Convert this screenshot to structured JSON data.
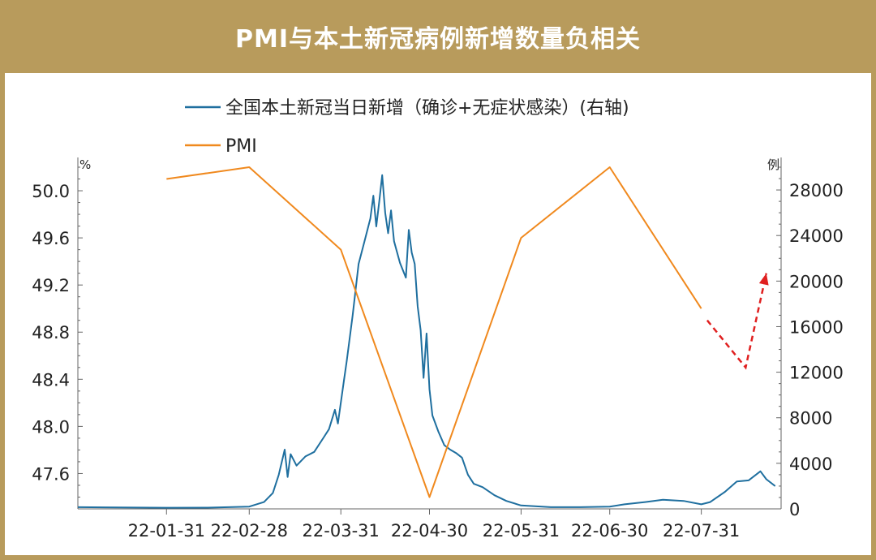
{
  "header": {
    "title": "PMI与本土新冠病例新增数量负相关"
  },
  "colors": {
    "frame": "#b89b5c",
    "cases_line": "#1f6f9f",
    "pmi_line": "#f0891e",
    "forecast_arrow": "#e02020"
  },
  "chart_data": {
    "type": "line",
    "title": "PMI与本土新冠病例新增数量负相关",
    "legend_position": "top-center",
    "grid": false,
    "x_tick_labels": [
      "22-01-31",
      "22-02-28",
      "22-03-31",
      "22-04-30",
      "22-05-31",
      "22-06-30",
      "22-07-31"
    ],
    "left_axis": {
      "unit_label": "%",
      "range": [
        47.3,
        50.2
      ],
      "ticks": [
        "50.0",
        "49.6",
        "49.2",
        "48.8",
        "48.4",
        "48.0",
        "47.6"
      ]
    },
    "right_axis": {
      "unit_label": "例",
      "range": [
        0,
        30000
      ],
      "ticks": [
        "28000",
        "24000",
        "20000",
        "16000",
        "12000",
        "8000",
        "4000",
        "0"
      ]
    },
    "series": [
      {
        "name": "全国本土新冠当日新增（确诊+无症状感染）(右轴)",
        "axis": "right",
        "points": [
          [
            "2022-01-01",
            150
          ],
          [
            "2022-01-15",
            120
          ],
          [
            "2022-01-31",
            100
          ],
          [
            "2022-02-14",
            110
          ],
          [
            "2022-02-28",
            200
          ],
          [
            "2022-03-05",
            600
          ],
          [
            "2022-03-08",
            1400
          ],
          [
            "2022-03-10",
            3000
          ],
          [
            "2022-03-12",
            5200
          ],
          [
            "2022-03-13",
            2800
          ],
          [
            "2022-03-14",
            4800
          ],
          [
            "2022-03-16",
            3800
          ],
          [
            "2022-03-19",
            4600
          ],
          [
            "2022-03-22",
            5000
          ],
          [
            "2022-03-25",
            6200
          ],
          [
            "2022-03-27",
            7000
          ],
          [
            "2022-03-29",
            8700
          ],
          [
            "2022-03-30",
            7500
          ],
          [
            "2022-04-01",
            11200
          ],
          [
            "2022-04-02",
            13000
          ],
          [
            "2022-04-04",
            17000
          ],
          [
            "2022-04-06",
            21500
          ],
          [
            "2022-04-08",
            23500
          ],
          [
            "2022-04-10",
            25500
          ],
          [
            "2022-04-11",
            27500
          ],
          [
            "2022-04-12",
            24800
          ],
          [
            "2022-04-13",
            27000
          ],
          [
            "2022-04-14",
            29300
          ],
          [
            "2022-04-15",
            26000
          ],
          [
            "2022-04-16",
            24200
          ],
          [
            "2022-04-17",
            26200
          ],
          [
            "2022-04-18",
            23500
          ],
          [
            "2022-04-20",
            21600
          ],
          [
            "2022-04-22",
            20300
          ],
          [
            "2022-04-23",
            24500
          ],
          [
            "2022-04-24",
            22500
          ],
          [
            "2022-04-25",
            21500
          ],
          [
            "2022-04-26",
            17800
          ],
          [
            "2022-04-27",
            15700
          ],
          [
            "2022-04-28",
            11500
          ],
          [
            "2022-04-29",
            15400
          ],
          [
            "2022-04-30",
            10500
          ],
          [
            "2022-05-01",
            8200
          ],
          [
            "2022-05-03",
            6800
          ],
          [
            "2022-05-05",
            5600
          ],
          [
            "2022-05-07",
            5200
          ],
          [
            "2022-05-09",
            4900
          ],
          [
            "2022-05-11",
            4500
          ],
          [
            "2022-05-13",
            3000
          ],
          [
            "2022-05-15",
            2200
          ],
          [
            "2022-05-18",
            1900
          ],
          [
            "2022-05-22",
            1200
          ],
          [
            "2022-05-26",
            700
          ],
          [
            "2022-05-31",
            300
          ],
          [
            "2022-06-10",
            150
          ],
          [
            "2022-06-20",
            150
          ],
          [
            "2022-06-30",
            200
          ],
          [
            "2022-07-05",
            400
          ],
          [
            "2022-07-12",
            600
          ],
          [
            "2022-07-18",
            800
          ],
          [
            "2022-07-25",
            700
          ],
          [
            "2022-07-31",
            400
          ],
          [
            "2022-08-03",
            600
          ],
          [
            "2022-08-08",
            1500
          ],
          [
            "2022-08-12",
            2400
          ],
          [
            "2022-08-16",
            2500
          ],
          [
            "2022-08-20",
            3300
          ],
          [
            "2022-08-22",
            2600
          ],
          [
            "2022-08-25",
            2000
          ]
        ]
      },
      {
        "name": "PMI",
        "axis": "left",
        "points": [
          [
            "2022-01-31",
            50.1
          ],
          [
            "2022-02-28",
            50.2
          ],
          [
            "2022-03-31",
            49.5
          ],
          [
            "2022-04-30",
            47.4
          ],
          [
            "2022-05-31",
            49.6
          ],
          [
            "2022-06-30",
            50.2
          ],
          [
            "2022-07-31",
            49.0
          ]
        ]
      }
    ],
    "annotations": [
      {
        "type": "forecast-arrow",
        "points": [
          [
            "2022-08-02",
            48.9
          ],
          [
            "2022-08-15",
            48.5
          ],
          [
            "2022-08-22",
            49.3
          ]
        ]
      }
    ]
  }
}
